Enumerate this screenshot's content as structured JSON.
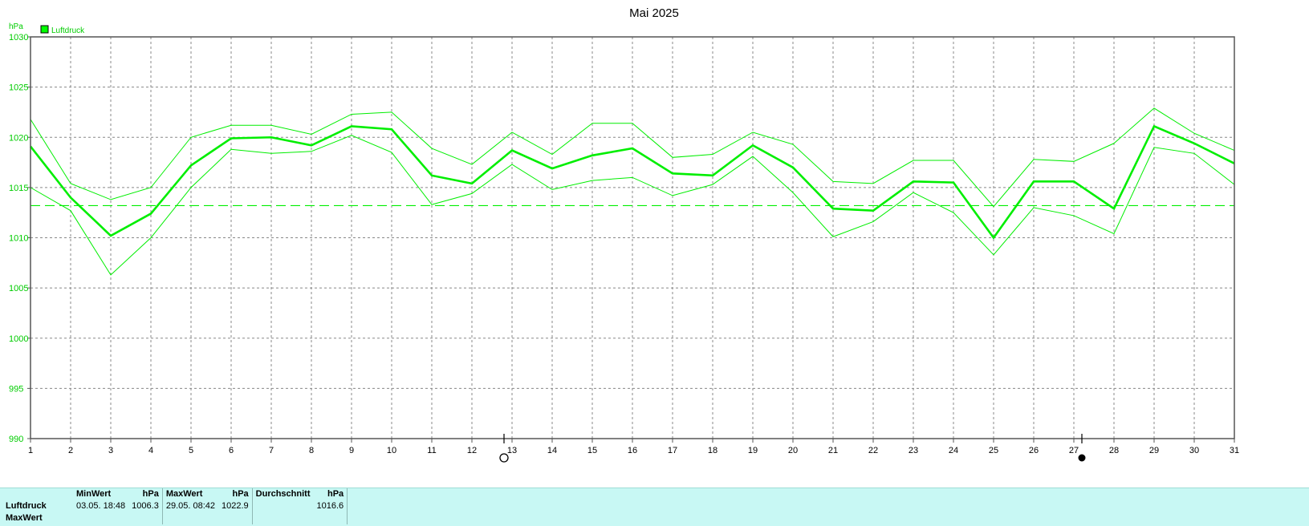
{
  "chart_data": {
    "type": "line",
    "title": "Mai 2025",
    "ylabel": "hPa",
    "legend": {
      "label": "Luftdruck",
      "color": "#00ff00",
      "placement": "top-left"
    },
    "ylim": [
      990,
      1030
    ],
    "yticks": [
      "1030",
      "1025",
      "1020",
      "1015",
      "1010",
      "1005",
      "1000",
      "995",
      "990"
    ],
    "x": [
      1,
      2,
      3,
      4,
      5,
      6,
      7,
      8,
      9,
      10,
      11,
      12,
      13,
      14,
      15,
      16,
      17,
      18,
      19,
      20,
      21,
      22,
      23,
      24,
      25,
      26,
      27,
      28,
      29,
      30,
      31
    ],
    "grid": true,
    "series": [
      {
        "name": "Luftdruck",
        "role": "mean",
        "color": "#00ee00",
        "values": [
          1019.1,
          1014.0,
          1010.2,
          1012.4,
          1017.2,
          1019.9,
          1020.0,
          1019.2,
          1021.1,
          1020.8,
          1016.2,
          1015.4,
          1018.7,
          1016.9,
          1018.2,
          1018.9,
          1016.4,
          1016.2,
          1019.2,
          1017.0,
          1012.9,
          1012.7,
          1015.6,
          1015.5,
          1010.0,
          1015.6,
          1015.6,
          1012.9,
          1021.1,
          1019.4,
          1017.4
        ]
      },
      {
        "role": "max",
        "color": "#00ee00",
        "values": [
          1021.8,
          1015.4,
          1013.8,
          1015.0,
          1020.0,
          1021.2,
          1021.2,
          1020.3,
          1022.3,
          1022.5,
          1018.9,
          1017.3,
          1020.5,
          1018.3,
          1021.4,
          1021.4,
          1018.0,
          1018.3,
          1020.5,
          1019.3,
          1015.6,
          1015.4,
          1017.7,
          1017.7,
          1013.1,
          1017.8,
          1017.6,
          1019.4,
          1022.9,
          1020.4,
          1018.7
        ]
      },
      {
        "role": "min",
        "color": "#00ee00",
        "values": [
          1015.0,
          1012.7,
          1006.3,
          1010.0,
          1015.0,
          1018.8,
          1018.4,
          1018.6,
          1020.2,
          1018.5,
          1013.3,
          1014.4,
          1017.3,
          1014.8,
          1015.7,
          1016.0,
          1014.2,
          1015.3,
          1018.1,
          1014.5,
          1010.1,
          1011.6,
          1014.5,
          1012.5,
          1008.3,
          1013.0,
          1012.2,
          1010.4,
          1019.0,
          1018.4,
          1015.3
        ]
      }
    ],
    "average_line": {
      "value": 1013.2,
      "style": "dashed",
      "color": "#00ee00"
    },
    "moon_markers": [
      {
        "day": 12.8,
        "phase": "full",
        "symbol": "○"
      },
      {
        "day": 27.2,
        "phase": "new",
        "symbol": "●"
      }
    ]
  },
  "stats": {
    "headers": {
      "min": "MinWert",
      "max": "MaxWert",
      "avg": "Durchschnitt",
      "unit": "hPa"
    },
    "rows": [
      {
        "label": "Luftdruck",
        "min_time": "03.05.  18:48",
        "min_val": "1006.3",
        "max_time": "29.05.  08:42",
        "max_val": "1022.9",
        "avg": "1016.6"
      },
      {
        "label": "MaxWert"
      }
    ]
  }
}
